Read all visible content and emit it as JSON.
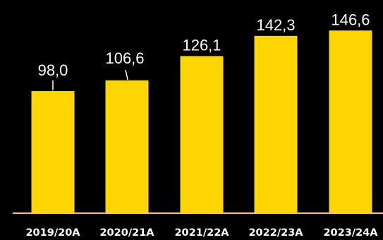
{
  "chart_data": {
    "type": "bar",
    "categories": [
      "2019/20A",
      "2020/21A",
      "2021/22A",
      "2022/23A",
      "2023/24A"
    ],
    "values": [
      98.0,
      106.6,
      126.1,
      142.3,
      146.6
    ],
    "value_labels": [
      "98,0",
      "106,6",
      "126,1",
      "142,3",
      "146,6"
    ],
    "title": "",
    "xlabel": "",
    "ylabel": "",
    "ylim": [
      0,
      160
    ],
    "grid": false,
    "legend": "none",
    "colors": {
      "background": "#000000",
      "bar": "#FFD500",
      "baseline": "#FFD500",
      "text": "#FFFFFF"
    }
  }
}
